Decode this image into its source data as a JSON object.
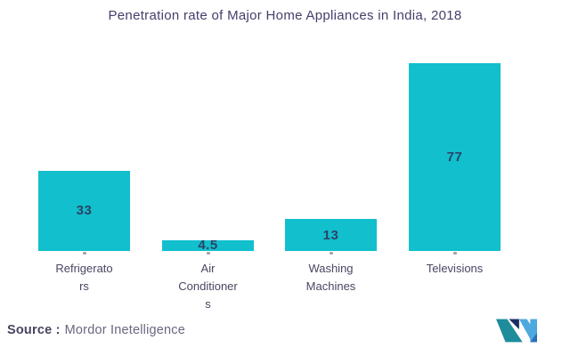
{
  "title": "Penetration rate of Major Home Appliances in India, 2018",
  "source": {
    "prefix": "Source :",
    "name": "Mordor Inetelligence"
  },
  "logo": {
    "icon": "mordor-intelligence-m-logo",
    "colors": {
      "teal": "#1f8c9c",
      "navy": "#1c2e5e",
      "light_blue": "#4ea9df",
      "medium_blue": "#2d6fb5"
    }
  },
  "colors": {
    "bar": "#11bfcd",
    "title_text": "#443e6b",
    "value_text": "#2c4468",
    "category_text": "#4b4563",
    "source_prefix_text": "#49435f",
    "source_name_text": "#6c6680",
    "background": "#ffffff"
  },
  "chart_data": {
    "type": "bar",
    "title": "Penetration rate of Major Home Appliances in India, 2018",
    "categories": [
      "Refrigerators",
      "Air Conditioners",
      "Washing Machines",
      "Televisions"
    ],
    "values": [
      33,
      4.5,
      13,
      77
    ],
    "value_labels": [
      "33",
      "4.5",
      "13",
      "77"
    ],
    "category_label_lines": [
      [
        "Refrigerato",
        "rs"
      ],
      [
        "Air",
        "Conditioner",
        "s"
      ],
      [
        "Washing",
        "Machines"
      ],
      [
        "Televisions"
      ]
    ],
    "xlabel": "",
    "ylabel": "",
    "ylim": [
      0,
      80
    ],
    "grid": false,
    "legend": false,
    "bar_color": "#11bfcd",
    "source": "Source : Mordor Inetelligence"
  }
}
